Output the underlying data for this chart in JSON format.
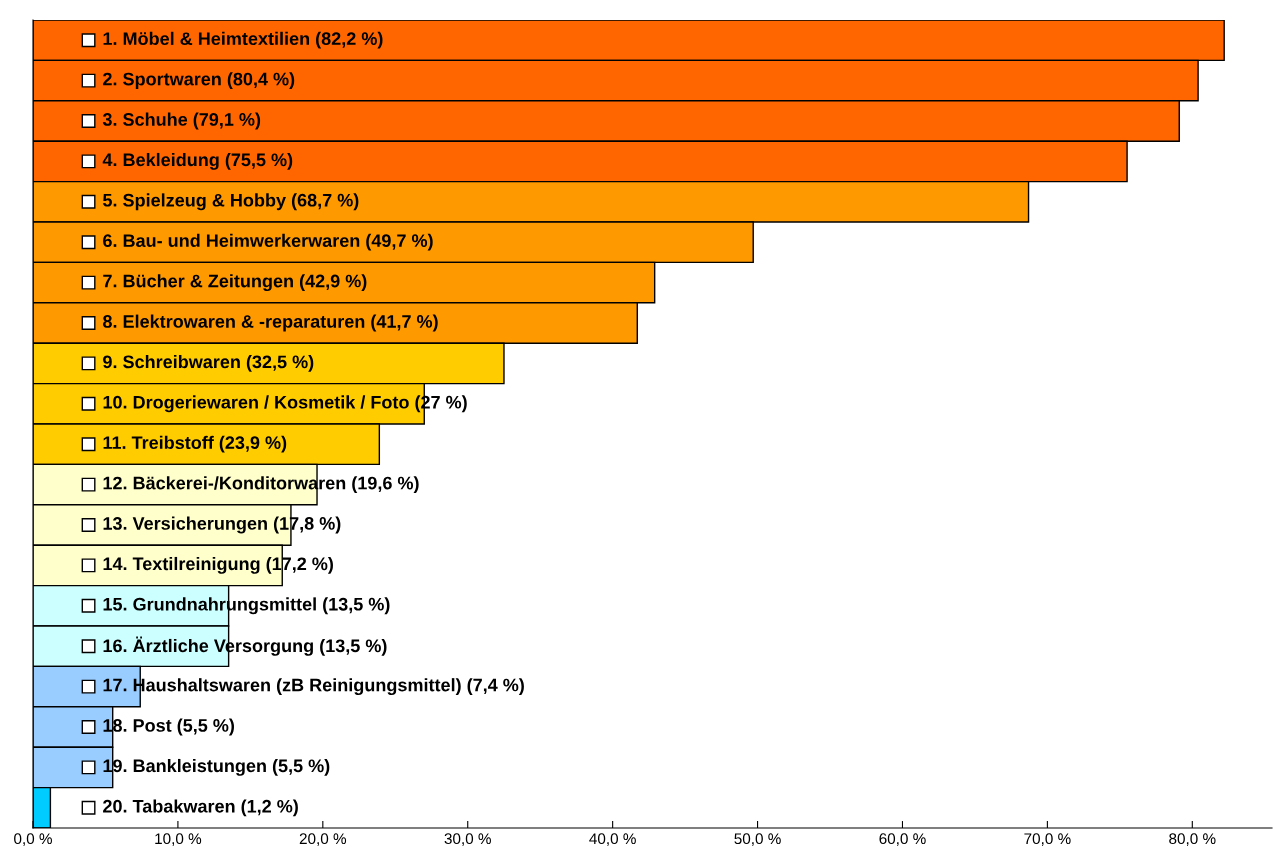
{
  "chart_data": {
    "type": "bar",
    "orientation": "horizontal",
    "categories": [
      "1. Möbel & Heimtextilien (82,2 %)",
      "2. Sportwaren (80,4 %)",
      "3. Schuhe (79,1 %)",
      "4. Bekleidung (75,5 %)",
      "5. Spielzeug & Hobby (68,7 %)",
      "6. Bau- und Heimwerkerwaren (49,7 %)",
      "7. Bücher & Zeitungen (42,9 %)",
      "8. Elektrowaren & -reparaturen (41,7 %)",
      "9. Schreibwaren (32,5 %)",
      "10. Drogeriewaren / Kosmetik / Foto (27 %)",
      "11. Treibstoff (23,9 %)",
      "12. Bäckerei-/Konditorwaren (19,6 %)",
      "13. Versicherungen (17,8 %)",
      "14. Textilreinigung (17,2 %)",
      "15. Grundnahrungsmittel (13,5 %)",
      "16. Ärztliche Versorgung (13,5 %)",
      "17. Haushaltswaren (zB Reinigungsmittel) (7,4 %)",
      "18. Post (5,5 %)",
      "19. Bankleistungen (5,5 %)",
      "20. Tabakwaren (1,2 %)"
    ],
    "values": [
      82.2,
      80.4,
      79.1,
      75.5,
      68.7,
      49.7,
      42.9,
      41.7,
      32.5,
      27,
      23.9,
      19.6,
      17.8,
      17.2,
      13.5,
      13.5,
      7.4,
      5.5,
      5.5,
      1.2
    ],
    "colors": [
      "#ff6600",
      "#ff6600",
      "#ff6600",
      "#ff6600",
      "#ff9900",
      "#ff9900",
      "#ff9900",
      "#ff9900",
      "#ffcc00",
      "#ffcc00",
      "#ffcc00",
      "#ffffcc",
      "#ffffcc",
      "#ffffcc",
      "#ccffff",
      "#ccffff",
      "#99ccff",
      "#99ccff",
      "#99ccff",
      "#00ccff"
    ],
    "xlim": [
      0,
      85.5
    ],
    "xticks": [
      {
        "value": 0,
        "label": "0,0 %"
      },
      {
        "value": 10,
        "label": "10,0 %"
      },
      {
        "value": 20,
        "label": "20,0 %"
      },
      {
        "value": 30,
        "label": "30,0 %"
      },
      {
        "value": 40,
        "label": "40,0 %"
      },
      {
        "value": 50,
        "label": "50,0 %"
      },
      {
        "value": 60,
        "label": "60,0 %"
      },
      {
        "value": 70,
        "label": "70,0 %"
      },
      {
        "value": 80,
        "label": "80,0 %"
      }
    ],
    "grid": false,
    "legend": false
  }
}
